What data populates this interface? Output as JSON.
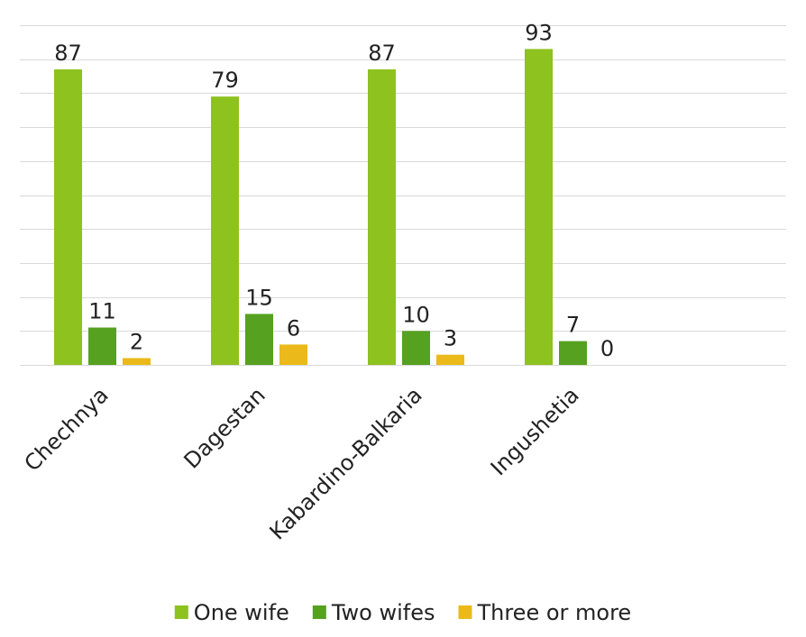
{
  "chart_data": {
    "type": "bar",
    "categories": [
      "Chechnya",
      "Dagestan",
      "Kabardino-Balkaria",
      "Ingushetia"
    ],
    "series": [
      {
        "name": "One wife",
        "values": [
          87,
          79,
          87,
          93
        ],
        "color": "#8dc21f"
      },
      {
        "name": "Two wifes",
        "values": [
          11,
          15,
          10,
          7
        ],
        "color": "#56a11f"
      },
      {
        "name": "Three or more",
        "values": [
          2,
          6,
          3,
          0
        ],
        "color": "#ebb91a"
      }
    ],
    "title": "",
    "xlabel": "",
    "ylabel": "",
    "ylim": [
      0,
      100
    ],
    "gridlines": true,
    "data_labels": true,
    "legend_position": "bottom",
    "colors": {
      "grid": "#d9d9d9",
      "text": "#222222"
    }
  }
}
